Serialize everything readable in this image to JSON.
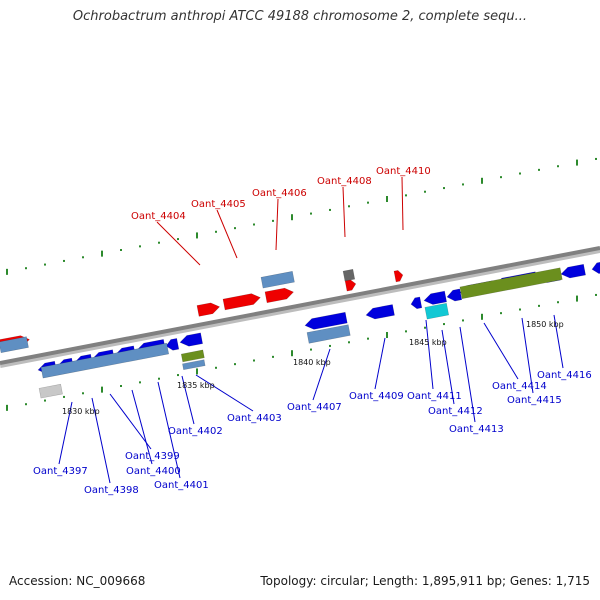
{
  "header": {
    "title": "Ochrobactrum anthropi ATCC 49188 chromosome 2, complete sequ..."
  },
  "footer": {
    "accession": "Accession: NC_009668",
    "topology": "Topology: circular; Length: 1,895,911 bp; Genes: 1,715"
  },
  "colors": {
    "forward_gene": "#ee0000",
    "reverse_gene": "#0000dd",
    "forward_label": "#cc0000",
    "reverse_label": "#0000cc",
    "steelblue": "#5f8fc2",
    "olive": "#6b8f1e",
    "cyan": "#12c8d4",
    "grey": "#666666",
    "backbone": "#808080",
    "tick": "#2d8a2d"
  },
  "kbp_labels": [
    "1830 kbp",
    "1835 kbp",
    "1840 kbp",
    "1845 kbp",
    "1850 kbp"
  ],
  "gene_labels": [
    {
      "id": "4397",
      "text": "Oant_4397",
      "strand": "reverse"
    },
    {
      "id": "4398",
      "text": "Oant_4398",
      "strand": "reverse"
    },
    {
      "id": "4399",
      "text": "Oant_4399",
      "strand": "reverse"
    },
    {
      "id": "4400",
      "text": "Oant_4400",
      "strand": "reverse"
    },
    {
      "id": "4401",
      "text": "Oant_4401",
      "strand": "reverse"
    },
    {
      "id": "4402",
      "text": "Oant_4402",
      "strand": "reverse"
    },
    {
      "id": "4403",
      "text": "Oant_4403",
      "strand": "reverse"
    },
    {
      "id": "4404",
      "text": "Oant_4404",
      "strand": "forward"
    },
    {
      "id": "4405",
      "text": "Oant_4405",
      "strand": "forward"
    },
    {
      "id": "4406",
      "text": "Oant_4406",
      "strand": "forward"
    },
    {
      "id": "4407",
      "text": "Oant_4407",
      "strand": "reverse"
    },
    {
      "id": "4408",
      "text": "Oant_4408",
      "strand": "forward"
    },
    {
      "id": "4409",
      "text": "Oant_4409",
      "strand": "reverse"
    },
    {
      "id": "4410",
      "text": "Oant_4410",
      "strand": "forward"
    },
    {
      "id": "4411",
      "text": "Oant_4411",
      "strand": "reverse"
    },
    {
      "id": "4412",
      "text": "Oant_4412",
      "strand": "reverse"
    },
    {
      "id": "4413",
      "text": "Oant_4413",
      "strand": "reverse"
    },
    {
      "id": "4414",
      "text": "Oant_4414",
      "strand": "reverse"
    },
    {
      "id": "4415",
      "text": "Oant_4415",
      "strand": "reverse"
    },
    {
      "id": "4416",
      "text": "Oant_4416",
      "strand": "reverse"
    }
  ]
}
